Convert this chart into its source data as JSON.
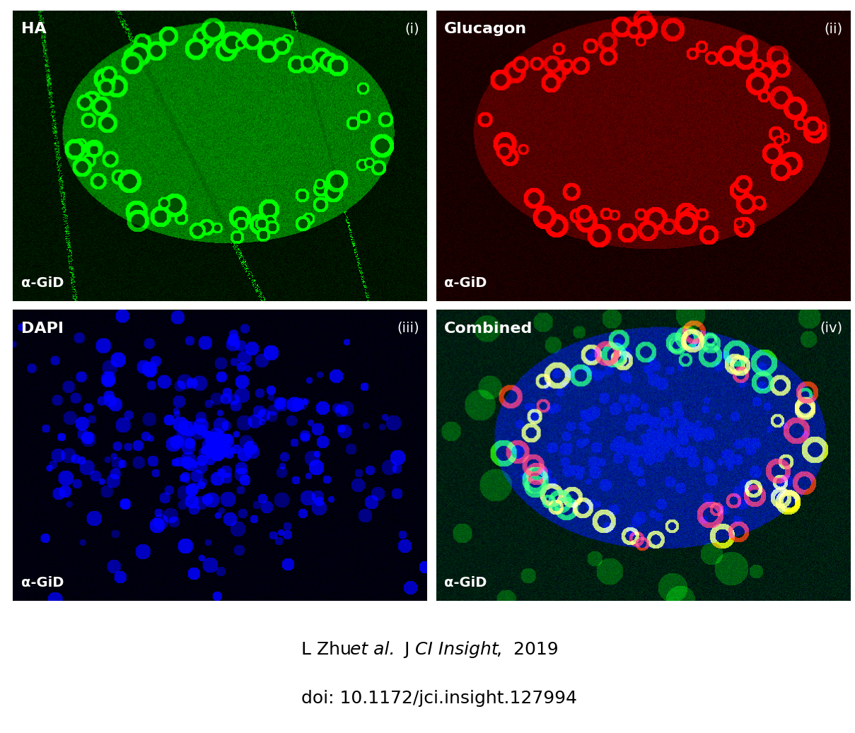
{
  "panels": [
    {
      "label_top_left": "HA",
      "label_bottom_left": "α-GiD",
      "label_top_right": "(i)",
      "bg_color": [
        0,
        30,
        0
      ],
      "channel": "green",
      "islet_color": [
        0,
        180,
        0
      ],
      "outer_bg": [
        0,
        20,
        0
      ]
    },
    {
      "label_top_left": "Glucagon",
      "label_bottom_left": "α-GiD",
      "label_top_right": "(ii)",
      "bg_color": [
        30,
        0,
        0
      ],
      "channel": "red",
      "islet_color": [
        200,
        0,
        0
      ],
      "outer_bg": [
        20,
        0,
        0
      ]
    },
    {
      "label_top_left": "DAPI",
      "label_bottom_left": "α-GiD",
      "label_top_right": "(iii)",
      "bg_color": [
        0,
        0,
        30
      ],
      "channel": "blue",
      "islet_color": [
        0,
        0,
        200
      ],
      "outer_bg": [
        0,
        0,
        20
      ]
    },
    {
      "label_top_left": "Combined",
      "label_bottom_left": "α-GiD",
      "label_top_right": "(iv)",
      "bg_color": [
        0,
        20,
        10
      ],
      "channel": "combined",
      "islet_color": [
        100,
        100,
        200
      ],
      "outer_bg": [
        0,
        20,
        10
      ]
    }
  ],
  "citation_line1": "L Zhu ",
  "citation_italic1": "et al.",
  "citation_line1b": " J",
  "citation_italic2": "CI Insight",
  "citation_line1c": ",  2019",
  "citation_line2": "doi: 10.1172/jci.insight.127994",
  "fig_width": 12.09,
  "fig_height": 10.37,
  "bg_color": "#ffffff"
}
